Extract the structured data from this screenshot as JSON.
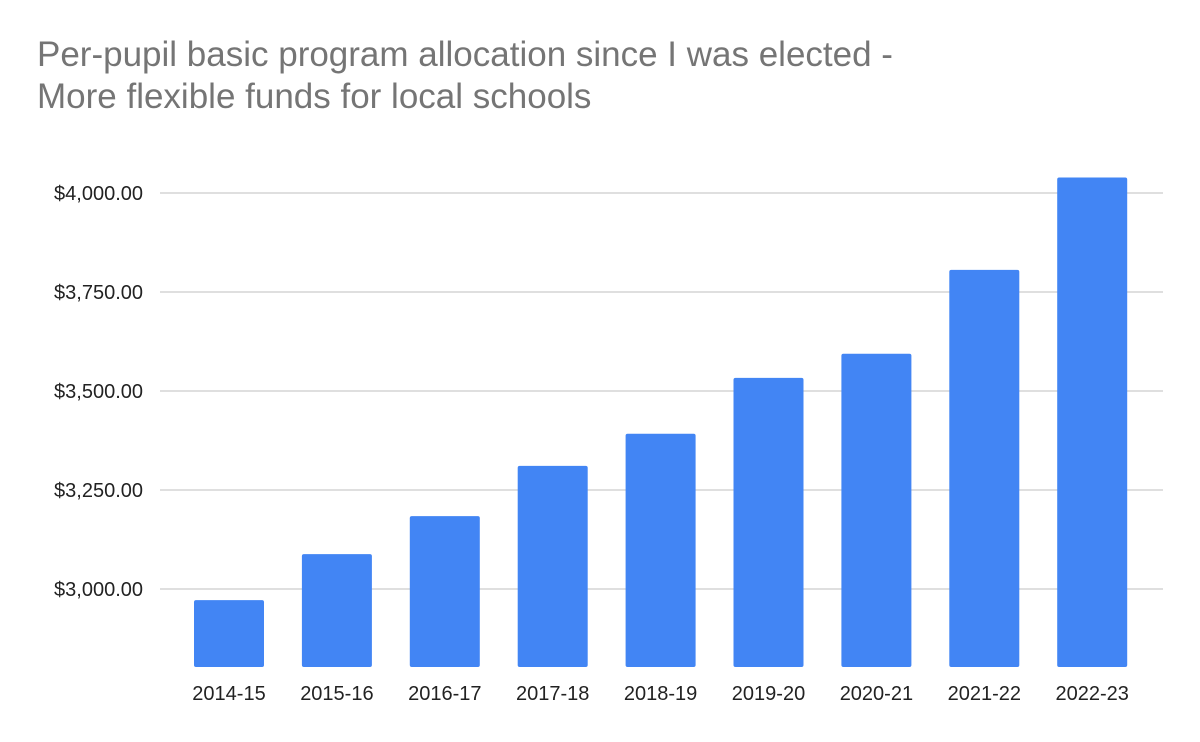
{
  "chart_data": {
    "type": "bar",
    "title_lines": [
      "Per-pupil basic program allocation since I was elected -",
      "More flexible funds for local schools"
    ],
    "categories": [
      "2014-15",
      "2015-16",
      "2016-17",
      "2017-18",
      "2018-19",
      "2019-20",
      "2020-21",
      "2021-22",
      "2022-23"
    ],
    "values": [
      2972,
      3088,
      3184,
      3311,
      3392,
      3533,
      3594,
      3806,
      4039
    ],
    "xlabel": "",
    "ylabel": "",
    "ylim": [
      2800,
      4060
    ],
    "yticks": [
      3000,
      3250,
      3500,
      3750,
      4000
    ],
    "ytick_labels": [
      "$3,000.00",
      "$3,250.00",
      "$3,500.00",
      "$3,750.00",
      "$4,000.00"
    ],
    "bar_color": "#4285f4",
    "grid": true,
    "legend": "none"
  }
}
